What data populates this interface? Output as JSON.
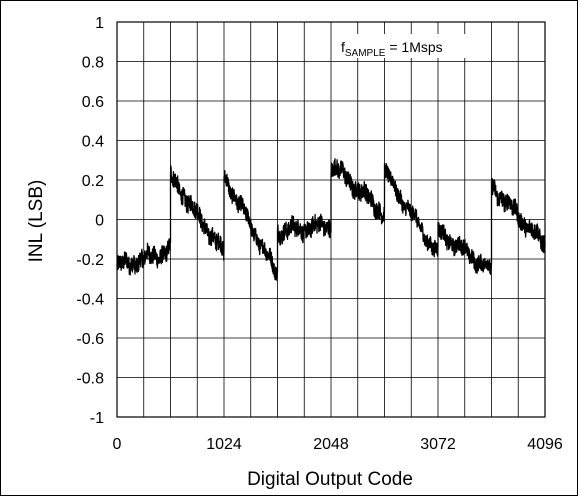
{
  "chart_data": {
    "type": "line",
    "title": "",
    "xlabel": "Digital Output Code",
    "ylabel": "INL (LSB)",
    "xlim": [
      0,
      4096
    ],
    "ylim": [
      -1,
      1
    ],
    "x_ticks": [
      0,
      1024,
      2048,
      3072,
      4096
    ],
    "x_tick_labels": [
      "0",
      "1024",
      "2048",
      "3072",
      "4096"
    ],
    "y_ticks": [
      1,
      0.8,
      0.6,
      0.4,
      0.2,
      0,
      -0.2,
      -0.4,
      -0.6,
      -0.8,
      -1
    ],
    "y_tick_labels": [
      "1",
      "0.8",
      "0.6",
      "0.4",
      "0.2",
      "0",
      "-0.2",
      "-0.4",
      "-0.6",
      "-0.8",
      "-1"
    ],
    "x_minor_gridlines": 16,
    "grid": true,
    "legend": {
      "placement": "top-right",
      "prefix": "f",
      "subscript": "SAMPLE",
      "suffix": " = 1Msps"
    },
    "series": [
      {
        "color": "#000000",
        "segments": [
          {
            "x0": 0,
            "x1": 512,
            "y0": -0.24,
            "y1": -0.16,
            "noise": 0.045
          },
          {
            "x0": 512,
            "x1": 1024,
            "y0": 0.22,
            "y1": -0.17,
            "noise": 0.045
          },
          {
            "x0": 1024,
            "x1": 1536,
            "y0": 0.22,
            "y1": -0.28,
            "noise": 0.04
          },
          {
            "x0": 1536,
            "x1": 2048,
            "y0": -0.06,
            "y1": -0.03,
            "noise": 0.045
          },
          {
            "x0": 2048,
            "x1": 2560,
            "y0": 0.28,
            "y1": 0.03,
            "noise": 0.045
          },
          {
            "x0": 2560,
            "x1": 3072,
            "y0": 0.24,
            "y1": -0.18,
            "noise": 0.04
          },
          {
            "x0": 3072,
            "x1": 3584,
            "y0": -0.06,
            "y1": -0.26,
            "noise": 0.04
          },
          {
            "x0": 3584,
            "x1": 4096,
            "y0": 0.17,
            "y1": -0.13,
            "noise": 0.045
          }
        ]
      }
    ]
  }
}
